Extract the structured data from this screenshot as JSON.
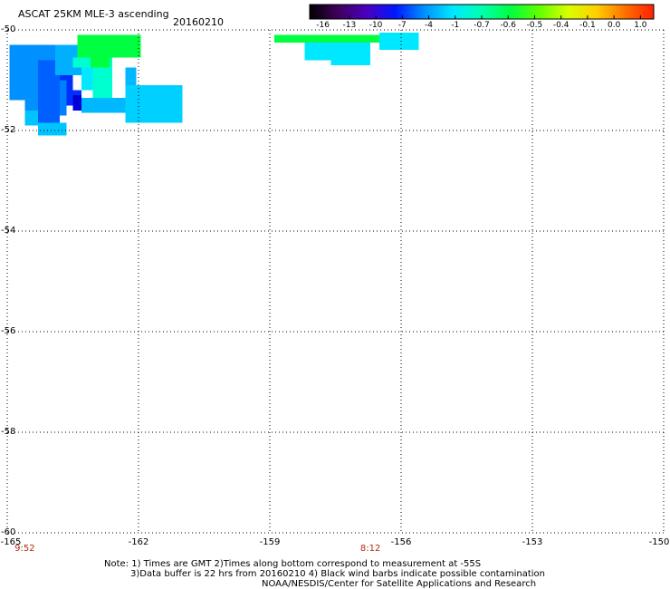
{
  "header": {
    "title": "ASCAT 25KM MLE-3 ascending",
    "date": "20160210"
  },
  "map": {
    "lat_range": [
      -60,
      -50
    ],
    "lon_range": [
      -165,
      -150
    ],
    "lat_ticks": [
      "-50",
      "-52",
      "-54",
      "-56",
      "-58",
      "-60"
    ],
    "lon_ticks": [
      "-165",
      "-162",
      "-159",
      "-156",
      "-153",
      "-150"
    ],
    "grid": "dotted",
    "time_markers": [
      {
        "label": "9:52",
        "lon": -164.6
      },
      {
        "label": "8:12",
        "lon": -156.7
      }
    ]
  },
  "colorbar": {
    "labels": [
      "-16",
      "-13",
      "-10",
      "-7",
      "-4",
      "-1",
      "-0.7",
      "-0.6",
      "-0.5",
      "-0.4",
      "-0.1",
      "0.0",
      "1.0"
    ],
    "colors": [
      "#000000",
      "#40005c",
      "#4a00c0",
      "#0018ff",
      "#0090ff",
      "#00e8ff",
      "#00ffb0",
      "#00ff40",
      "#60ff00",
      "#d8ff00",
      "#ffd000",
      "#ff7000",
      "#ff2000"
    ]
  },
  "chart_data": {
    "type": "heatmap",
    "variable": "ASCAT 25KM MLE-3 ascending",
    "x": "longitude",
    "y": "latitude",
    "cells": [
      {
        "lon": [
          -164.95,
          -164.6
        ],
        "lat": [
          -51.4,
          -50.3
        ],
        "color": "#0090ff"
      },
      {
        "lon": [
          -164.6,
          -164.3
        ],
        "lat": [
          -51.6,
          -50.3
        ],
        "color": "#0090ff"
      },
      {
        "lon": [
          -164.6,
          -164.3
        ],
        "lat": [
          -51.9,
          -51.6
        ],
        "color": "#00c4ff"
      },
      {
        "lon": [
          -164.3,
          -163.8
        ],
        "lat": [
          -51.9,
          -50.3
        ],
        "color": "#0060ff"
      },
      {
        "lon": [
          -164.3,
          -163.65
        ],
        "lat": [
          -52.1,
          -51.85
        ],
        "color": "#00c4ff"
      },
      {
        "lon": [
          -164.3,
          -163.9
        ],
        "lat": [
          -50.6,
          -50.3
        ],
        "color": "#0090ff"
      },
      {
        "lon": [
          -163.8,
          -163.5
        ],
        "lat": [
          -51.2,
          -50.9
        ],
        "color": "#0030ff"
      },
      {
        "lon": [
          -163.65,
          -163.3
        ],
        "lat": [
          -51.5,
          -51.2
        ],
        "color": "#0030ff"
      },
      {
        "lon": [
          -163.5,
          -163.3
        ],
        "lat": [
          -51.6,
          -51.3
        ],
        "color": "#0000d8"
      },
      {
        "lon": [
          -163.8,
          -163.65
        ],
        "lat": [
          -51.7,
          -51.0
        ],
        "color": "#0080ff"
      },
      {
        "lon": [
          -163.9,
          -163.3
        ],
        "lat": [
          -50.9,
          -50.3
        ],
        "color": "#00b0ff"
      },
      {
        "lon": [
          -163.3,
          -163.05
        ],
        "lat": [
          -51.2,
          -50.3
        ],
        "color": "#00e8ff"
      },
      {
        "lon": [
          -163.05,
          -162.6
        ],
        "lat": [
          -51.35,
          -50.55
        ],
        "color": "#00ffd0"
      },
      {
        "lon": [
          -162.3,
          -162.05
        ],
        "lat": [
          -51.5,
          -50.75
        ],
        "color": "#00b8ff"
      },
      {
        "lon": [
          -163.3,
          -162.05
        ],
        "lat": [
          -51.65,
          -51.35
        ],
        "color": "#00b8ff"
      },
      {
        "lon": [
          -162.3,
          -161.0
        ],
        "lat": [
          -51.85,
          -51.1
        ],
        "color": "#00d0ff"
      },
      {
        "lon": [
          -163.4,
          -161.95
        ],
        "lat": [
          -50.55,
          -50.1
        ],
        "color": "#00ff40"
      },
      {
        "lon": [
          -163.25,
          -162.65
        ],
        "lat": [
          -50.75,
          -50.55
        ],
        "color": "#00ff40"
      },
      {
        "lon": [
          -163.5,
          -163.1
        ],
        "lat": [
          -50.75,
          -50.55
        ],
        "color": "#00ffd0"
      },
      {
        "lon": [
          -158.9,
          -156.5
        ],
        "lat": [
          -50.25,
          -50.1
        ],
        "color": "#00ff40"
      },
      {
        "lon": [
          -156.5,
          -155.6
        ],
        "lat": [
          -50.4,
          -50.05
        ],
        "color": "#00e8ff"
      },
      {
        "lon": [
          -158.2,
          -157.6
        ],
        "lat": [
          -50.6,
          -50.25
        ],
        "color": "#00e8ff"
      },
      {
        "lon": [
          -157.6,
          -156.7
        ],
        "lat": [
          -50.7,
          -50.25
        ],
        "color": "#00e8ff"
      }
    ]
  },
  "notes": {
    "line1": "Note: 1) Times are GMT 2)Times along bottom correspond to measurement at -55S",
    "line2": "3)Data buffer is 22 hrs from 20160210 4) Black wind barbs indicate possible contamination",
    "line3": "NOAA/NESDIS/Center for Satellite Applications and Research"
  }
}
